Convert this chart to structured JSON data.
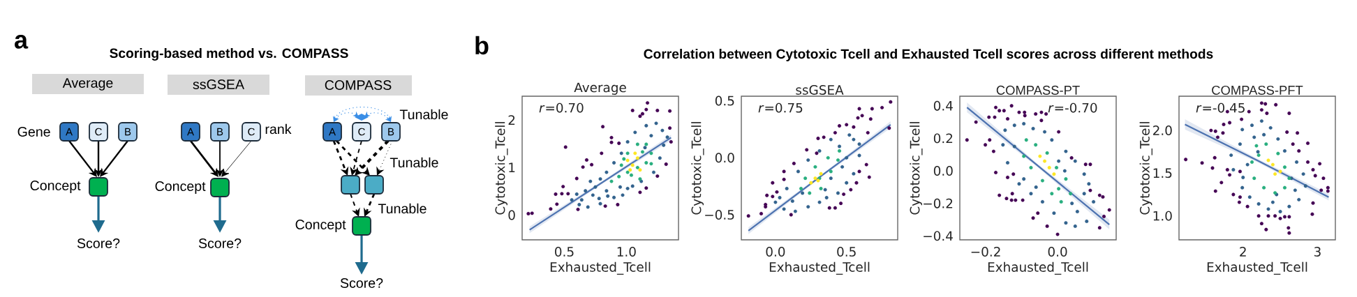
{
  "chart_data": [
    {
      "type": "other",
      "title": "Scoring-based method vs. COMPASS",
      "annotations": [
        "a",
        "Average",
        "ssGSEA",
        "COMPASS",
        "Gene",
        "A",
        "C",
        "B",
        "Concept",
        "Score?",
        "A",
        "B",
        "C",
        "rank",
        "Concept",
        "Score?",
        "Tunable",
        "A",
        "C",
        "B",
        "Tunable",
        "Tunable",
        "Concept",
        "Score?"
      ]
    },
    {
      "type": "other",
      "title": "Correlation between Cytotoxic Tcell and Exhausted Tcell scores across different methods",
      "annotations": [
        "b"
      ]
    },
    {
      "type": "scatter",
      "title": "Average",
      "xlabel": "Exhausted_Tcell",
      "ylabel": "Cytotoxic_Tcell",
      "marker": "circle",
      "xlim": [
        0.16,
        1.42
      ],
      "ylim": [
        -0.52,
        2.5
      ],
      "xticks": [
        0.5,
        {
          "value": 1,
          "label": "1.0"
        }
      ],
      "yticks": [
        0,
        1,
        2
      ],
      "annotations": [
        "*r*=0.70"
      ],
      "series": [
        {
          "color": "#440154",
          "x": [
            1.17,
            1.05,
            1.16,
            1.25,
            1.35,
            1.13,
            1.11,
            0.81,
            0.51,
            0.88,
            0.88,
            0.94,
            0.8,
            0.68,
            0.72,
            0.65,
            0.6,
            0.49,
            0.43,
            0.48,
            0.53,
            0.39,
            0.44,
            0.24,
            1.35,
            1.36,
            1.32,
            1.25,
            1.16,
            1.11,
            0.93,
            0.83,
            0.61,
            0.21
          ],
          "values": [
            2.36,
            2.2,
            2.22,
            2.2,
            2.19,
            2.13,
            2.08,
            1.86,
            1.43,
            1.63,
            1.53,
            1.51,
            1.3,
            1.16,
            1.06,
            1.01,
            0.77,
            0.6,
            0.44,
            0.45,
            0.45,
            0.13,
            0.23,
            0.04,
            1.83,
            1.54,
            1.07,
            0.82,
            0.57,
            0.48,
            0.22,
            0.19,
            0.12,
            0.03
          ]
        },
        {
          "color": "#33638d",
          "x": [
            0.64,
            0.69,
            0.79,
            0.73,
            0.67,
            0.84,
            0.9,
            0.97,
            1.01,
            0.79,
            0.84,
            0.9,
            0.96,
            1.01,
            1.07,
            1.16,
            1.24,
            1.29,
            1.33,
            1.27,
            1.22,
            1.12,
            1.05,
            0.62,
            0.56,
            0.71,
            0.75,
            0.85,
            0.95,
            1.15,
            1.2,
            1.3,
            0.6,
            0.78
          ],
          "values": [
            0.32,
            0.17,
            0.24,
            0.42,
            0.51,
            0.51,
            0.37,
            0.42,
            0.56,
            0.76,
            0.9,
            1.1,
            1.3,
            1.54,
            1.74,
            1.88,
            1.93,
            1.78,
            1.64,
            1.2,
            0.9,
            0.71,
            0.61,
            0.22,
            0.32,
            0.71,
            0.59,
            0.4,
            0.59,
            1.42,
            1.67,
            1.47,
            0.44,
            0.35
          ]
        },
        {
          "color": "#29af7f",
          "x": [
            0.94,
            1.01,
            1.09,
            1.16,
            1.2,
            1.16,
            1.09,
            1.01,
            0.96,
            1.11,
            0.88,
            0.98,
            1.13,
            1.2,
            1.04
          ],
          "values": [
            0.81,
            0.9,
            1.0,
            1.1,
            1.3,
            1.49,
            1.49,
            1.3,
            1.05,
            0.76,
            0.71,
            1.18,
            1.33,
            1.08,
            0.84
          ]
        },
        {
          "color": "#fde725",
          "x": [
            1.05,
            1.01,
            1.09,
            1.11,
            1.03,
            1.07
          ],
          "values": [
            1.05,
            1.15,
            1.2,
            0.95,
            0.95,
            1.3
          ]
        },
        {
          "type": "line",
          "marker": "none",
          "color": "#4c72b0",
          "x": [
            0.22,
            0.79,
            1.36
          ],
          "values": [
            -0.31,
            0.66,
            1.63
          ],
          "lower": [
            -0.38,
            0.63,
            1.57
          ],
          "upper": [
            -0.24,
            0.69,
            1.69
          ]
        }
      ]
    },
    {
      "type": "scatter",
      "title": "ssGSEA",
      "xlabel": "Exhausted_Tcell",
      "ylabel": "Cytotoxic_Tcell",
      "marker": "circle",
      "xlim": [
        -0.24,
        0.86
      ],
      "ylim": [
        -0.72,
        0.54
      ],
      "xticks": [
        {
          "value": 0,
          "label": "0.0"
        },
        0.5
      ],
      "yticks": [
        {
          "value": -0.5,
          "label": "−0.5"
        },
        {
          "value": 0,
          "label": "0.0"
        },
        0.5
      ],
      "annotations": [
        "*r*=0.75"
      ],
      "series": [
        {
          "color": "#440154",
          "x": [
            0.81,
            0.75,
            0.68,
            0.59,
            0.8,
            0.66,
            0.67,
            0.58,
            0.5,
            0.45,
            0.34,
            0.3,
            0.22,
            0.06,
            0.13,
            -0.02,
            -0.06,
            -0.07,
            -0.1,
            0.11,
            0.38,
            0.42,
            0.46,
            0.48,
            0.53,
            0.57,
            0.59,
            0.64,
            0.65,
            0.55,
            0.61,
            0.42,
            0.29,
            0.06,
            -0.02,
            -0.19,
            0.01,
            -0.07
          ],
          "values": [
            0.49,
            0.44,
            0.43,
            0.43,
            0.26,
            -0.17,
            0.34,
            0.35,
            0.29,
            0.28,
            0.18,
            0.17,
            0.07,
            -0.12,
            -0.05,
            -0.34,
            -0.33,
            -0.41,
            -0.49,
            -0.5,
            -0.44,
            -0.44,
            -0.4,
            -0.32,
            -0.28,
            -0.22,
            -0.12,
            -0.06,
            0.22,
            0.27,
            0.37,
            0.22,
            0.04,
            -0.19,
            -0.22,
            -0.51,
            -0.3,
            -0.43
          ]
        },
        {
          "color": "#33638d",
          "x": [
            0,
            0.06,
            0.14,
            0.23,
            0.31,
            0.36,
            0.44,
            0.5,
            0.55,
            0.59,
            0.55,
            0.52,
            0.39,
            0.31,
            0.23,
            0.16,
            0.08,
            0.03,
            0.59,
            0.47,
            0.39,
            0.19,
            0.45,
            0.12,
            0.35,
            0.5
          ],
          "values": [
            -0.39,
            -0.45,
            -0.47,
            -0.43,
            -0.39,
            -0.35,
            -0.31,
            -0.22,
            -0.14,
            0.02,
            0.16,
            0.2,
            0.16,
            0.06,
            -0.02,
            -0.12,
            -0.27,
            -0.35,
            0.12,
            -0.08,
            -0.18,
            -0.31,
            0.1,
            -0.38,
            -0.28,
            0
          ]
        },
        {
          "color": "#29af7f",
          "x": [
            0.18,
            0.24,
            0.32,
            0.39,
            0.44,
            0.37,
            0.28,
            0.21,
            0.45,
            0.31
          ],
          "values": [
            -0.27,
            -0.31,
            -0.27,
            -0.12,
            -0.02,
            0,
            -0.08,
            -0.18,
            0.06,
            -0.18
          ]
        },
        {
          "color": "#fde725",
          "x": [
            0.28,
            0.25,
            0.32,
            0.3
          ],
          "values": [
            -0.18,
            -0.22,
            -0.14,
            -0.2
          ]
        },
        {
          "type": "line",
          "marker": "none",
          "color": "#4c72b0",
          "x": [
            -0.19,
            0.31,
            0.81
          ],
          "values": [
            -0.64,
            -0.17,
            0.29
          ],
          "lower": [
            -0.67,
            -0.18,
            0.26
          ],
          "upper": [
            -0.61,
            -0.16,
            0.32
          ]
        }
      ]
    },
    {
      "type": "scatter",
      "title": "COMPASS-PT",
      "xlabel": "Exhausted_Tcell",
      "ylabel": "Cytotoxic_Tcell",
      "marker": "circle",
      "xlim": [
        -0.272,
        0.163
      ],
      "ylim": [
        -0.424,
        0.459
      ],
      "xticks": [
        {
          "value": -0.2,
          "label": "−0.2"
        },
        {
          "value": 0,
          "label": "0.0"
        }
      ],
      "yticks": [
        {
          "value": -0.4,
          "label": "−0.4"
        },
        {
          "value": -0.2,
          "label": "−0.2"
        },
        {
          "value": 0,
          "label": "0.0"
        },
        0.2,
        0.4
      ],
      "annotations": [
        "*r*=-0.70"
      ],
      "series": [
        {
          "color": "#440154",
          "x": [
            -0.252,
            -0.227,
            -0.201,
            -0.191,
            -0.189,
            -0.172,
            -0.162,
            -0.149,
            -0.128,
            -0.107,
            -0.092,
            -0.091,
            -0.061,
            -0.045,
            -0.032,
            -0.175,
            -0.139,
            -0.178,
            -0.172,
            -0.139,
            -0.123,
            -0.162,
            -0.142,
            -0.128,
            -0.117,
            -0.097,
            -0.126,
            -0.068,
            -0.055,
            -0.029,
            0,
            0.117,
            0.129,
            0.144,
            0.126,
            0.117,
            0.091,
            0.091,
            0.078,
            0.003,
            0.039,
            -0.045
          ],
          "values": [
            0.19,
            0.3,
            0.16,
            0.33,
            0.19,
            0.39,
            0.37,
            0.37,
            0.4,
            0.36,
            0.36,
            0.34,
            0.35,
            0.36,
            0.35,
            0.33,
            0.32,
            0.12,
            -0.01,
            -0.04,
            -0.02,
            -0.15,
            -0.17,
            -0.18,
            -0.18,
            -0.18,
            -0.14,
            -0.29,
            -0.26,
            -0.34,
            -0.39,
            -0.35,
            -0.28,
            -0.24,
            -0.16,
            -0.15,
            -0.12,
            0.04,
            0.04,
            0.24,
            0.08,
            0.31
          ]
        },
        {
          "color": "#33638d",
          "x": [
            -0.146,
            -0.12,
            -0.094,
            -0.068,
            -0.036,
            -0.016,
            0.023,
            0.049,
            0.074,
            0.087,
            0.1,
            0.081,
            0.049,
            0.023,
            -0.01,
            -0.042,
            -0.074,
            -0.107,
            -0.139,
            -0.152,
            -0.094,
            0.055,
            0.074,
            0.003,
            -0.12,
            -0.06,
            0.04,
            0.02
          ],
          "values": [
            0.25,
            0.28,
            0.29,
            0.26,
            0.24,
            0.19,
            0.12,
            0.06,
            -0.02,
            -0.08,
            -0.19,
            -0.31,
            -0.34,
            -0.32,
            -0.26,
            -0.19,
            -0.14,
            -0.08,
            0.05,
            0.16,
            -0.05,
            -0.25,
            -0.14,
            0.06,
            0.15,
            -0.1,
            -0.2,
            0
          ]
        },
        {
          "color": "#29af7f",
          "x": [
            -0.087,
            -0.061,
            -0.029,
            -0.003,
            0.023,
            0.036,
            0.01,
            -0.016,
            -0.042,
            -0.074,
            -0.094,
            0.003
          ],
          "values": [
            0.19,
            0.16,
            0.11,
            0.02,
            -0.05,
            -0.14,
            -0.19,
            -0.14,
            -0.06,
            0.02,
            0.09,
            -0.11
          ]
        },
        {
          "color": "#fde725",
          "x": [
            -0.036,
            -0.023,
            -0.049,
            -0.01
          ],
          "values": [
            0.06,
            0.02,
            0.09,
            -0.02
          ]
        },
        {
          "type": "line",
          "marker": "none",
          "color": "#4c72b0",
          "x": [
            -0.252,
            -0.054,
            0.144
          ],
          "values": [
            0.39,
            0.03,
            -0.33
          ],
          "lower": [
            0.36,
            0.02,
            -0.36
          ],
          "upper": [
            0.42,
            0.04,
            -0.3
          ]
        }
      ]
    },
    {
      "type": "scatter",
      "title": "COMPASS-PFT",
      "xlabel": "Exhausted_Tcell",
      "ylabel": "Cytotoxic_Tcell",
      "marker": "circle",
      "xlim": [
        1.14,
        3.24
      ],
      "ylim": [
        0.72,
        2.4
      ],
      "xticks": [
        2,
        3
      ],
      "yticks": [
        {
          "value": 1,
          "label": "1.0"
        },
        1.5,
        {
          "value": 2,
          "label": "2.0"
        }
      ],
      "annotations": [
        "*r*=-0.45"
      ],
      "series": [
        {
          "color": "#440154",
          "x": [
            1.23,
            1.45,
            2.25,
            2.3,
            2.44,
            2.08,
            2.25,
            2.32,
            2.62,
            1.79,
            1.82,
            1.98,
            1.74,
            1.57,
            1.63,
            1.66,
            1.73,
            2.59,
            2.73,
            2.87,
            2.67,
            2.75,
            3.03,
            2.87,
            2.94,
            2.97,
            3.08,
            3.14,
            3.14,
            3.05,
            2.94,
            2.93,
            2.62,
            2.56,
            2.5,
            2.43,
            2.34,
            2.21,
            2.25,
            2.31,
            2.61,
            2.62,
            1.87,
            1.96,
            1.95,
            2.06,
            1.71,
            1.63,
            1.79,
            1.82,
            1.59,
            1.62,
            1.96
          ],
          "values": [
            1.66,
            1.62,
            2.32,
            2.31,
            2.3,
            2.22,
            2.24,
            2.2,
            2.2,
            2.22,
            2.09,
            2.13,
            2.07,
            2,
            1.99,
            1.92,
            1.97,
            1.98,
            1.97,
            1.85,
            1.84,
            1.76,
            1.61,
            1.63,
            1.54,
            1.47,
            1.44,
            1.33,
            1.29,
            1.3,
            1.15,
            1.02,
            0.99,
            0.99,
            0.97,
            1,
            1,
            1,
            0.91,
            0.84,
            0.86,
            0.8,
            1.25,
            1.22,
            1.16,
            1.11,
            1.39,
            1.29,
            1.54,
            1.48,
            1.56,
            1.68,
            1.52
          ]
        },
        {
          "color": "#33638d",
          "x": [
            1.99,
            2.12,
            2.25,
            2.37,
            2.47,
            2.56,
            2.72,
            2.81,
            2.84,
            2.75,
            2.62,
            2.5,
            2.34,
            2.21,
            2.09,
            1.99,
            1.87,
            1.84,
            1.96,
            2.15,
            2.28,
            2.06,
            2.65,
            2.4,
            2.7,
            2,
            2.45,
            2.2
          ],
          "values": [
            2.01,
            2.06,
            2.11,
            2.03,
            1.9,
            1.76,
            1.63,
            1.49,
            1.35,
            1.19,
            1.11,
            1.05,
            1.08,
            1.14,
            1.22,
            1.33,
            1.54,
            1.71,
            1.84,
            1.92,
            1.95,
            1.6,
            1.44,
            1.16,
            1.3,
            1.45,
            1.25,
            1.75
          ]
        },
        {
          "color": "#29af7f",
          "x": [
            2.18,
            2.31,
            2.47,
            2.56,
            2.62,
            2.56,
            2.43,
            2.28,
            2.15,
            2.12,
            2.21
          ],
          "values": [
            1.82,
            1.84,
            1.73,
            1.57,
            1.44,
            1.33,
            1.27,
            1.33,
            1.44,
            1.63,
            1.71
          ]
        },
        {
          "color": "#fde725",
          "x": [
            2.4,
            2.34,
            2.5,
            2.43
          ],
          "values": [
            1.6,
            1.65,
            1.52,
            1.49
          ]
        },
        {
          "type": "line",
          "marker": "none",
          "color": "#4c72b0",
          "x": [
            1.22,
            2.19,
            3.15
          ],
          "values": [
            2.07,
            1.65,
            1.22
          ],
          "lower": [
            2.01,
            1.63,
            1.18
          ],
          "upper": [
            2.13,
            1.67,
            1.26
          ]
        }
      ]
    }
  ]
}
